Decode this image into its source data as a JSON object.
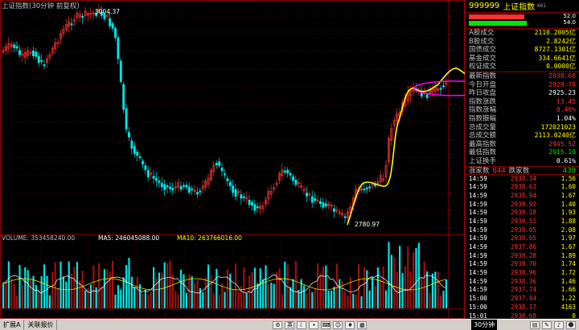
{
  "chart": {
    "title": "上证指数(30分钟 前复权)",
    "high_label": "3004.37",
    "low_label": "2780.97",
    "volume_label": "VOLUME: 353458240.00",
    "ma5_label": "MA5: 246045088.00",
    "ma10_label": "MA10: 263766016.00",
    "colors": {
      "up": "#ff3232",
      "down": "#00e5e5",
      "ma5": "#ffffff",
      "ma10": "#ffff00",
      "annotation_yellow": "#ffff00",
      "annotation_magenta": "#ff00ff",
      "grid": "#8b0000"
    }
  },
  "panel": {
    "code": "999999",
    "name": "上证指数",
    "tag": "X61",
    "ratio_up": "52.0",
    "ratio_down": "54.0",
    "ratio_up_pct": 0.52,
    "ratio_down_pct": 0.54,
    "stats": [
      {
        "k": "A股成交",
        "v": "2110.2005亿",
        "c": "yellow"
      },
      {
        "k": "B股成交",
        "v": "2.8242亿",
        "c": "yellow"
      },
      {
        "k": "国债成交",
        "v": "8727.1301亿",
        "c": "yellow"
      },
      {
        "k": "基金成交",
        "v": "334.6641亿",
        "c": "yellow"
      },
      {
        "k": "权证成交",
        "v": "0.0000亿",
        "c": "yellow"
      }
    ],
    "quote": [
      {
        "k": "最新指数",
        "v": "2938.68",
        "c": "red"
      },
      {
        "k": "今日开盘",
        "v": "2929.79",
        "c": "red"
      },
      {
        "k": "昨日收盘",
        "v": "2925.23",
        "c": "white"
      },
      {
        "k": "指数涨跌",
        "v": "13.45",
        "c": "red"
      },
      {
        "k": "指数涨幅",
        "v": "0.46%",
        "c": "red"
      },
      {
        "k": "指数振幅",
        "v": "1.04%",
        "c": "white"
      },
      {
        "k": "总成交量",
        "v": "172021023",
        "c": "yellow"
      },
      {
        "k": "总成交额",
        "v": "2113.0240亿",
        "c": "yellow"
      },
      {
        "k": "最高指数",
        "v": "2945.52",
        "c": "red"
      },
      {
        "k": "最低指数",
        "v": "2915.19",
        "c": "green"
      },
      {
        "k": "上证换手",
        "v": "0.61%",
        "c": "white"
      }
    ],
    "up_label": "涨家数",
    "up_count": "644",
    "down_label": "跌家数",
    "down_count": "439",
    "ticks": [
      {
        "t": "14:59",
        "p": "2938.34",
        "q": "1.56"
      },
      {
        "t": "14:59",
        "p": "2938.63",
        "q": "1.60"
      },
      {
        "t": "14:59",
        "p": "2938.94",
        "q": "1.67"
      },
      {
        "t": "14:59",
        "p": "2938.92",
        "q": "1.40"
      },
      {
        "t": "14:59",
        "p": "2938.18",
        "q": "1.93"
      },
      {
        "t": "14:59",
        "p": "2938.51",
        "q": "1.88"
      },
      {
        "t": "14:59",
        "p": "2938.05",
        "q": "2.08"
      },
      {
        "t": "14:59",
        "p": "2938.65",
        "q": "1.97"
      },
      {
        "t": "14:59",
        "p": "2937.86",
        "q": "1.67"
      },
      {
        "t": "14:59",
        "p": "2938.28",
        "q": "1.89"
      },
      {
        "t": "14:59",
        "p": "2938.70",
        "q": "1.74"
      },
      {
        "t": "14:59",
        "p": "2938.96",
        "q": "1.72"
      },
      {
        "t": "14:59",
        "p": "2938.36",
        "q": "1.46"
      },
      {
        "t": "14:59",
        "p": "2937.74",
        "q": "1.66"
      },
      {
        "t": "15:00",
        "p": "2937.84",
        "q": "1.22"
      },
      {
        "t": "15:00",
        "p": "2938.17",
        "q": "4163"
      },
      {
        "t": "15:01",
        "p": "2938.68",
        "q": "0"
      }
    ]
  },
  "statusbar": {
    "tab1": "扩展A",
    "tab2": "关联报价",
    "period": "30分钟",
    "ime": "英"
  }
}
